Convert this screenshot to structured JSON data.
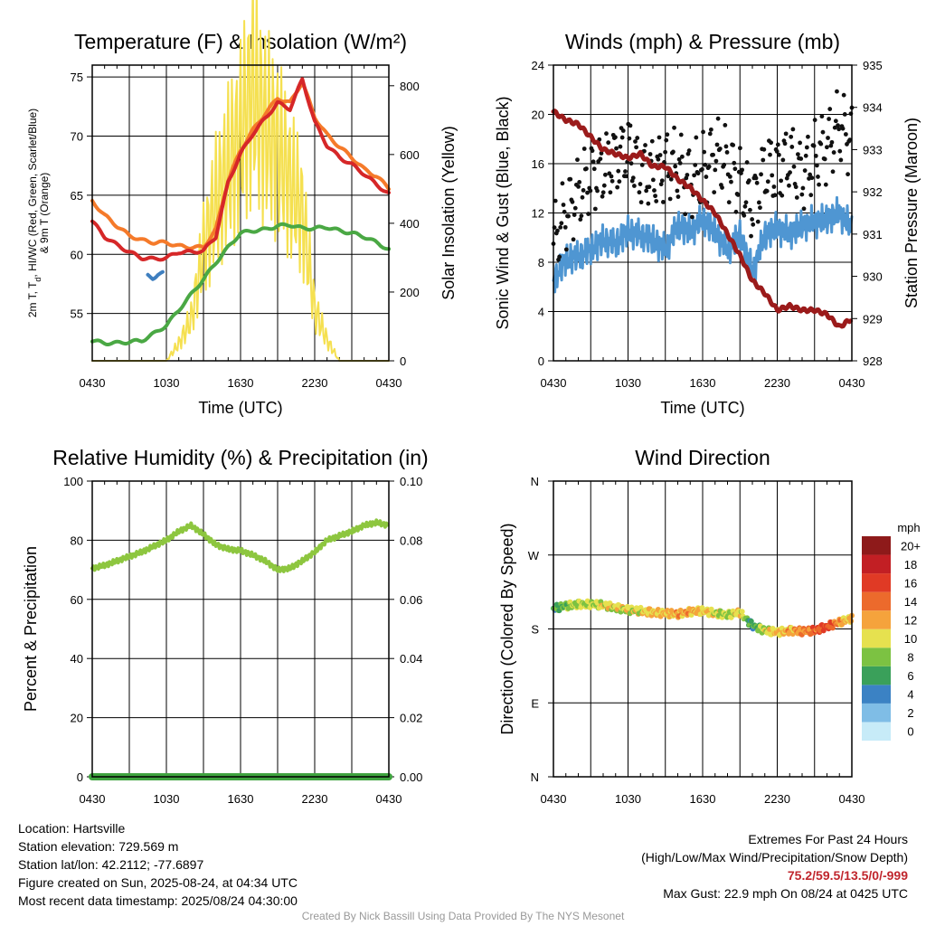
{
  "chart_data": [
    {
      "type": "line",
      "title": "Temperature (F) & Insolation (W/m²)",
      "xlabel": "Time (UTC)",
      "ylabel": "2m T, T_d, HI/WC (Red, Green, Scarlet/Blue) & 9m T (Orange)",
      "ylabel_line1": "2m T, T",
      "ylabel_sub": "d",
      "ylabel_line1b": ", HI/WC (Red, Green, Scarlet/Blue)",
      "ylabel_line2": "& 9m T (Orange)",
      "y2label": "Solar Insolation (Yellow)",
      "x_ticks": [
        "0430",
        "1030",
        "1630",
        "2230",
        "0430"
      ],
      "ylim": [
        51,
        76
      ],
      "y_ticks": [
        55,
        60,
        65,
        70,
        75
      ],
      "y2lim": [
        0,
        860
      ],
      "y2_ticks": [
        0,
        200,
        400,
        600,
        800
      ],
      "x_hours": [
        0,
        1,
        2,
        3,
        4,
        5,
        6,
        7,
        8,
        9,
        10,
        11,
        12,
        13,
        14,
        15,
        16,
        17,
        18,
        19,
        20,
        21,
        22,
        23,
        24
      ],
      "series": [
        {
          "color": "#d62728",
          "axis": "left",
          "values": [
            62.8,
            61.5,
            60.8,
            60.2,
            59.7,
            59.6,
            59.7,
            60.2,
            60.2,
            60.3,
            61.5,
            66.1,
            68.5,
            70.2,
            71.5,
            72.8,
            72.3,
            74.8,
            71.2,
            69.2,
            68.2,
            67.6,
            66.8,
            65.9,
            65.1
          ]
        },
        {
          "color": "#f57a2a",
          "axis": "left",
          "values": [
            64.5,
            63.3,
            62.4,
            61.6,
            61.2,
            61.0,
            61.0,
            60.7,
            60.6,
            60.6,
            62.1,
            66.3,
            68.8,
            70.5,
            71.9,
            73.2,
            72.8,
            74.6,
            71.6,
            70.1,
            69.1,
            68.2,
            67.2,
            66.6,
            65.6
          ]
        },
        {
          "color": "#4aa844",
          "axis": "left",
          "values": [
            52.7,
            52.5,
            52.5,
            52.6,
            52.7,
            53.3,
            54.0,
            55.3,
            56.6,
            57.9,
            59.3,
            60.6,
            61.8,
            62.0,
            62.1,
            62.4,
            62.5,
            62.2,
            62.2,
            62.3,
            62.0,
            61.8,
            61.5,
            61.0,
            60.4
          ]
        },
        {
          "color": "#3f7fbf",
          "axis": "left",
          "hours": [
            4.5,
            4.9,
            5.3,
            5.7
          ],
          "values": [
            58.2,
            58.0,
            58.3,
            58.4
          ]
        },
        {
          "color": "#f5e050",
          "axis": "right",
          "values": [
            0,
            0,
            0,
            0,
            0,
            0,
            0,
            50,
            120,
            320,
            460,
            560,
            650,
            800,
            680,
            620,
            520,
            430,
            150,
            60,
            0,
            0,
            0,
            0,
            0
          ]
        }
      ]
    },
    {
      "type": "line",
      "title": "Winds (mph) & Pressure (mb)",
      "xlabel": "Time (UTC)",
      "ylabel": "Sonic Wind & Gust (Blue, Black)",
      "y2label": "Station Pressure (Maroon)",
      "x_ticks": [
        "0430",
        "1030",
        "1630",
        "2230",
        "0430"
      ],
      "ylim": [
        0,
        24
      ],
      "y_ticks": [
        0,
        4,
        8,
        12,
        16,
        20,
        24
      ],
      "y2lim": [
        928,
        935
      ],
      "y2_ticks": [
        928,
        929,
        930,
        931,
        932,
        933,
        934,
        935
      ],
      "x_hours": [
        0,
        1,
        2,
        3,
        4,
        5,
        6,
        7,
        8,
        9,
        10,
        11,
        12,
        13,
        14,
        15,
        16,
        17,
        18,
        19,
        20,
        21,
        22,
        23,
        24
      ],
      "series": [
        {
          "color": "#4f96d2",
          "axis": "left",
          "style": "line",
          "values": [
            6.5,
            8.2,
            8.5,
            9.0,
            9.8,
            9.5,
            10.5,
            10.2,
            9.8,
            9.0,
            11.0,
            10.5,
            11.5,
            10.5,
            9.0,
            10.2,
            7.2,
            10.2,
            10.8,
            10.3,
            11.0,
            11.3,
            11.5,
            12.0,
            10.8
          ]
        },
        {
          "color": "#111111",
          "axis": "left",
          "style": "points",
          "values": [
            9.5,
            12.0,
            13.5,
            15.0,
            15.5,
            16.5,
            17.0,
            15.5,
            15.0,
            16.0,
            15.8,
            14.5,
            15.5,
            16.8,
            16.0,
            14.5,
            12.5,
            15.5,
            15.5,
            16.5,
            15.0,
            16.5,
            17.5,
            19.0,
            18.0
          ]
        },
        {
          "color": "#9b1b1b",
          "axis": "right",
          "style": "line",
          "values": [
            933.9,
            933.7,
            933.6,
            933.3,
            933.0,
            932.9,
            932.8,
            932.9,
            932.6,
            932.6,
            932.3,
            932.1,
            931.8,
            931.5,
            931.0,
            930.5,
            929.9,
            929.6,
            929.2,
            929.3,
            929.2,
            929.2,
            929.1,
            928.8,
            929.0
          ]
        }
      ]
    },
    {
      "type": "line",
      "title": "Relative Humidity (%) & Precipitation (in)",
      "xlabel": "",
      "ylabel": "Percent & Precipitation",
      "x_ticks": [
        "0430",
        "1030",
        "1630",
        "2230",
        "0430"
      ],
      "ylim": [
        0,
        100
      ],
      "y_ticks": [
        0,
        20,
        40,
        60,
        80,
        100
      ],
      "y2lim": [
        0,
        0.1
      ],
      "y2_ticks": [
        "0.00",
        "0.02",
        "0.04",
        "0.06",
        "0.08",
        "0.10"
      ],
      "x_hours": [
        0,
        1,
        2,
        3,
        4,
        5,
        6,
        7,
        8,
        9,
        10,
        11,
        12,
        13,
        14,
        15,
        16,
        17,
        18,
        19,
        20,
        21,
        22,
        23,
        24
      ],
      "series": [
        {
          "color": "#8dc63f",
          "axis": "left",
          "values": [
            70.5,
            71.5,
            73.0,
            74.5,
            76.0,
            78.0,
            80.0,
            83.0,
            85.0,
            82.0,
            78.5,
            77.0,
            76.5,
            75.0,
            73.0,
            70.0,
            70.5,
            73.0,
            76.0,
            80.0,
            81.5,
            83.0,
            85.0,
            86.0,
            85.0
          ]
        },
        {
          "color": "#3fa33f",
          "axis": "right",
          "values": [
            0,
            0,
            0,
            0,
            0,
            0,
            0,
            0,
            0,
            0,
            0,
            0,
            0,
            0,
            0,
            0,
            0,
            0,
            0,
            0,
            0,
            0,
            0,
            0,
            0
          ]
        }
      ]
    },
    {
      "type": "scatter",
      "title": "Wind Direction",
      "xlabel": "",
      "ylabel": "Direction (Colored By Speed)",
      "x_ticks": [
        "0430",
        "1030",
        "1630",
        "2230",
        "0430"
      ],
      "y_ticks": [
        "N",
        "E",
        "S",
        "W",
        "N"
      ],
      "ylim": [
        0,
        360
      ],
      "colorbar_title": "mph",
      "colorbar_labels": [
        "0",
        "2",
        "4",
        "6",
        "8",
        "10",
        "12",
        "14",
        "16",
        "18",
        "20+"
      ],
      "colorbar_colors": [
        "#c7ebf8",
        "#7fbde6",
        "#3b82c4",
        "#3aa05a",
        "#7cc242",
        "#e6e14f",
        "#f5a33c",
        "#ec6a2c",
        "#e03a25",
        "#c21f24",
        "#8e1a1a"
      ],
      "x_hours": [
        0,
        1,
        2,
        3,
        4,
        5,
        6,
        7,
        8,
        9,
        10,
        11,
        12,
        13,
        14,
        15,
        16,
        17,
        18,
        19,
        20,
        21,
        22,
        23,
        24
      ],
      "direction_deg": [
        205,
        208,
        210,
        210,
        209,
        206,
        203,
        202,
        200,
        199,
        198,
        201,
        202,
        199,
        197,
        200,
        184,
        178,
        176,
        178,
        177,
        178,
        183,
        188,
        193
      ],
      "speed_mph": [
        6,
        8,
        9,
        9,
        10,
        10,
        10,
        10,
        11,
        11,
        12,
        12,
        11,
        10,
        9,
        11,
        5,
        10,
        11,
        12,
        13,
        14,
        16,
        12,
        11
      ]
    }
  ],
  "footer_left": {
    "location": "Location: Hartsville",
    "elevation": "Station elevation: 729.569 m",
    "latlon": "Station lat/lon: 42.2112; -77.6897",
    "created": "Figure created on Sun, 2025-08-24, at 04:34 UTC",
    "recent": "Most recent data timestamp: 2025/08/24 04:30:00"
  },
  "footer_right": {
    "line1": "Extremes For Past 24 Hours",
    "line2": "(High/Low/Max Wind/Precipitation/Snow Depth)",
    "values": "75.2/59.5/13.5/0/-999",
    "gust": "Max Gust: 22.9 mph On 08/24 at 0425 UTC"
  },
  "credit": "Created By Nick Bassill Using Data Provided By The NYS Mesonet",
  "colors": {
    "extremes": "#c0262d",
    "credit": "#999999"
  }
}
